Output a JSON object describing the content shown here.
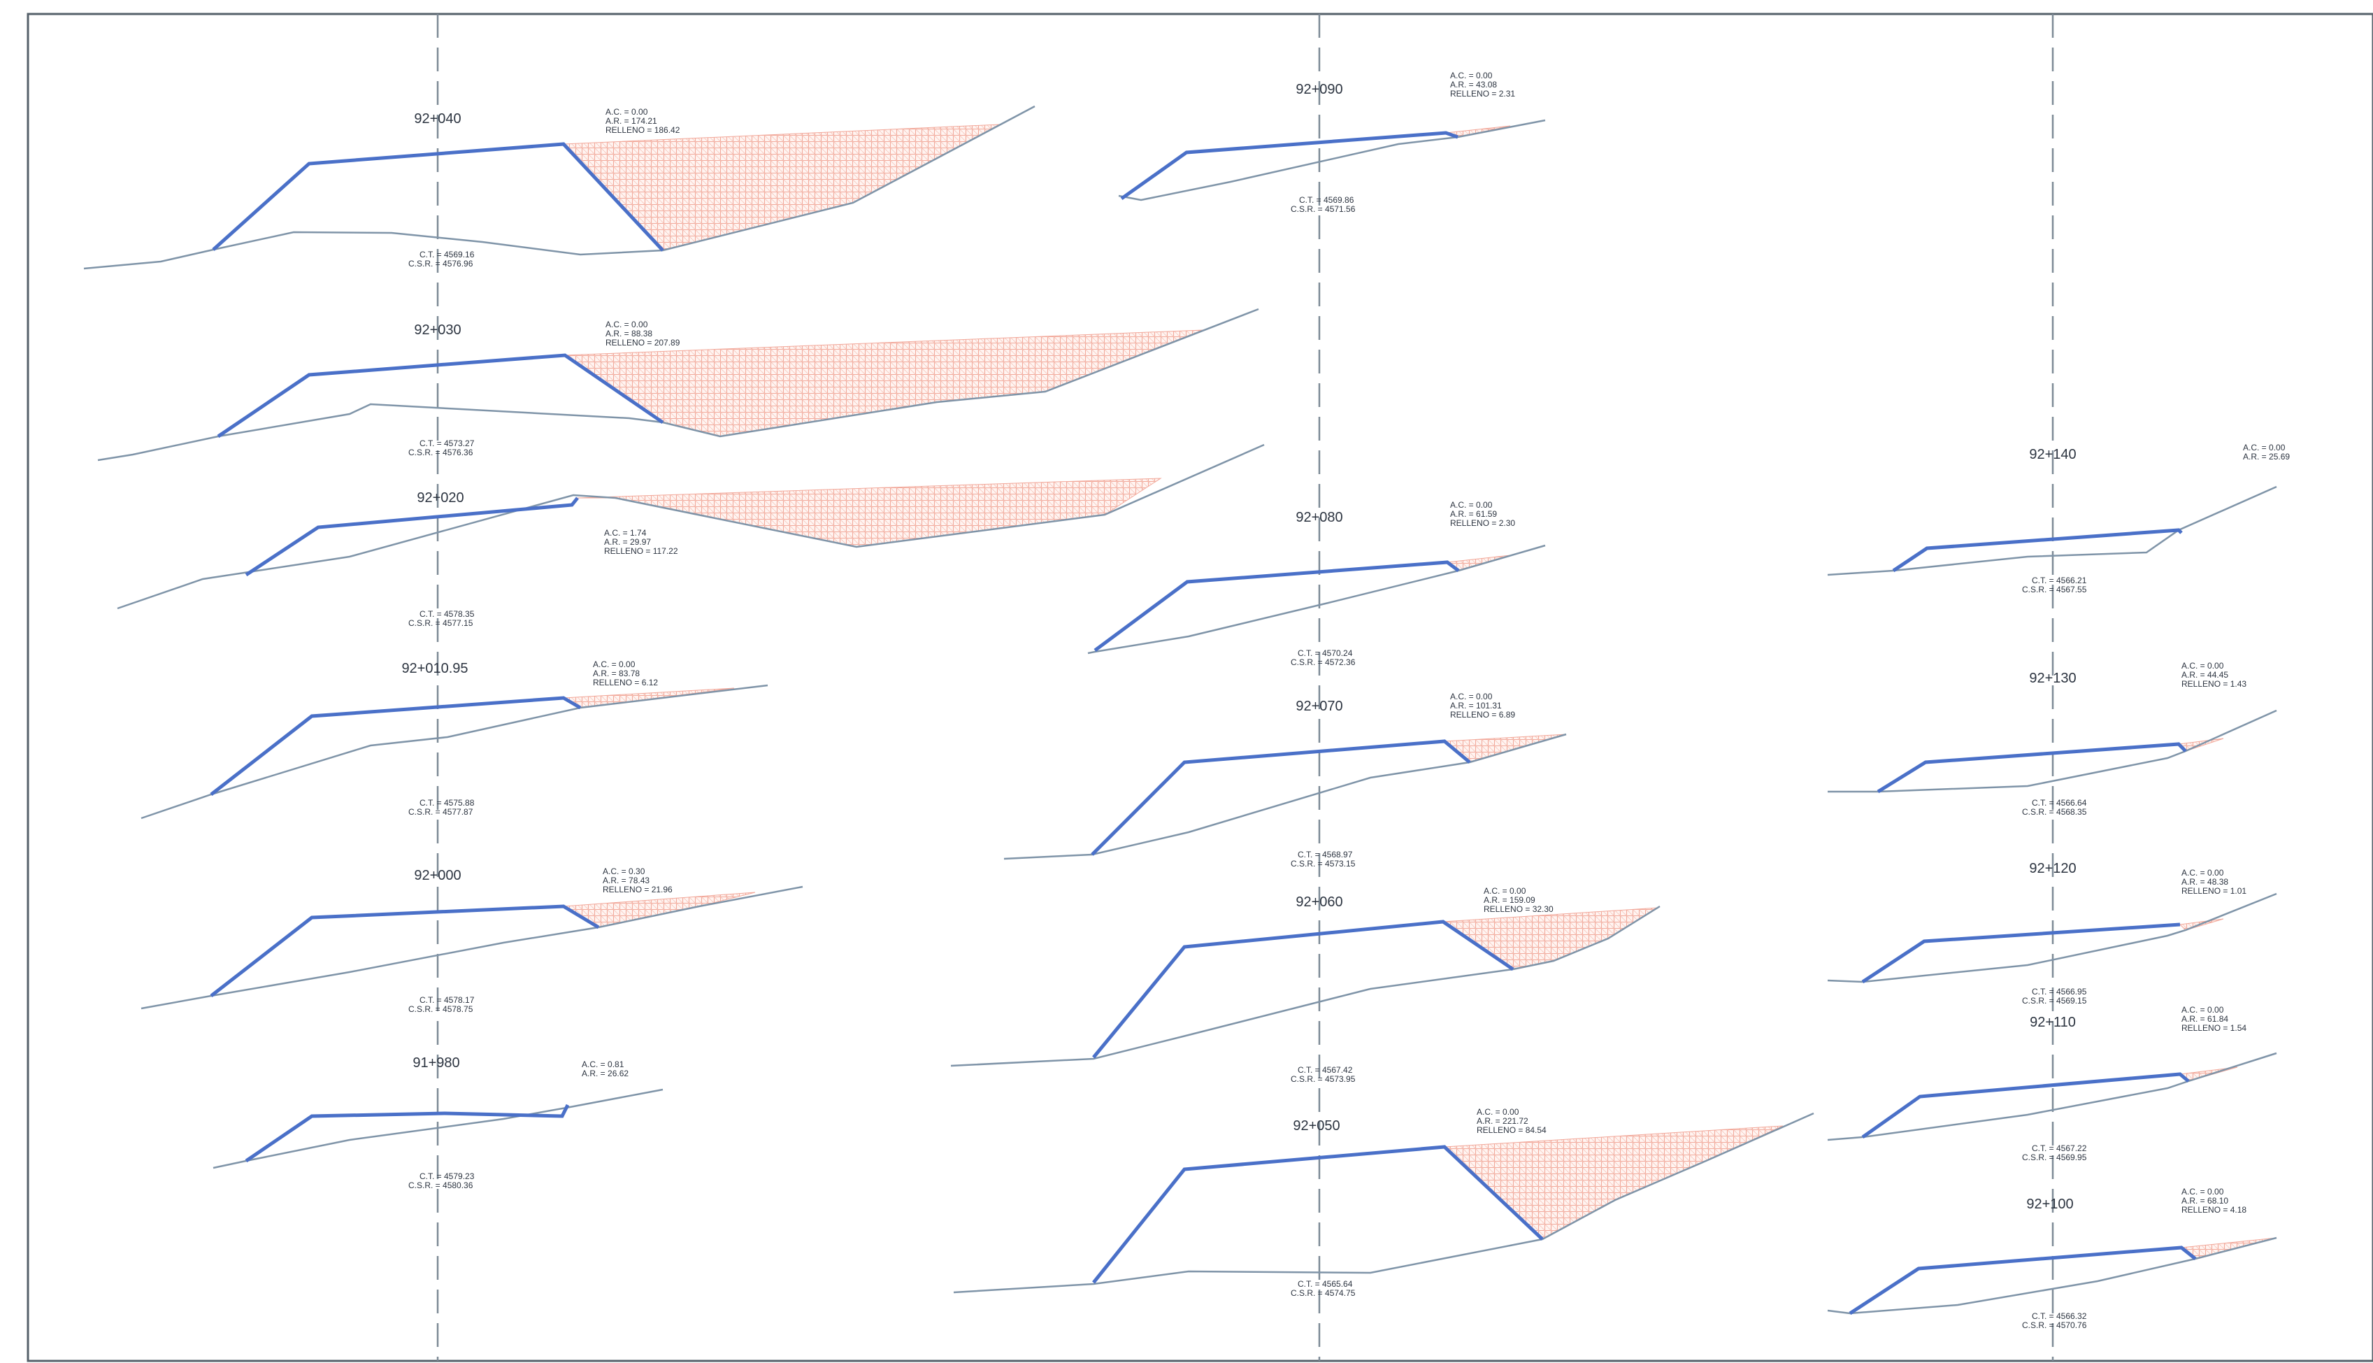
{
  "colors": {
    "design": "#4a70c8",
    "ground": "#7f94a8",
    "fill_hatch": "#f2a89a",
    "axis": "#7d8a96",
    "text": "#2c3440",
    "frame": "#55606a"
  },
  "sections": [
    {
      "station": "92+040",
      "areas": [
        "A.C. = 0.00",
        "A.R. = 174.21",
        "RELLENO = 186.42"
      ],
      "elevations": [
        "C.T. = 4569.16",
        "C.S.R. = 4576.96"
      ]
    },
    {
      "station": "92+030",
      "areas": [
        "A.C. = 0.00",
        "A.R. = 88.38",
        "RELLENO = 207.89"
      ],
      "elevations": [
        "C.T. = 4573.27",
        "C.S.R. = 4576.36"
      ]
    },
    {
      "station": "92+020",
      "areas": [
        "A.C. = 1.74",
        "A.R. = 29.97",
        "RELLENO = 117.22"
      ],
      "elevations": [
        "C.T. = 4578.35",
        "C.S.R. = 4577.15"
      ]
    },
    {
      "station": "92+010.95",
      "areas": [
        "A.C. = 0.00",
        "A.R. = 83.78",
        "RELLENO = 6.12"
      ],
      "elevations": [
        "C.T. = 4575.88",
        "C.S.R. = 4577.87"
      ]
    },
    {
      "station": "92+000",
      "areas": [
        "A.C. = 0.30",
        "A.R. = 78.43",
        "RELLENO = 21.96"
      ],
      "elevations": [
        "C.T. = 4578.17",
        "C.S.R. = 4578.75"
      ]
    },
    {
      "station": "91+980",
      "areas": [
        "A.C. = 0.81",
        "A.R. = 26.62"
      ],
      "elevations": [
        "C.T. = 4579.23",
        "C.S.R. = 4580.36"
      ]
    },
    {
      "station": "92+090",
      "areas": [
        "A.C. = 0.00",
        "A.R. = 43.08",
        "RELLENO = 2.31"
      ],
      "elevations": [
        "C.T. = 4569.86",
        "C.S.R. = 4571.56"
      ]
    },
    {
      "station": "92+080",
      "areas": [
        "A.C. = 0.00",
        "A.R. = 61.59",
        "RELLENO = 2.30"
      ],
      "elevations": [
        "C.T. = 4570.24",
        "C.S.R. = 4572.36"
      ]
    },
    {
      "station": "92+070",
      "areas": [
        "A.C. = 0.00",
        "A.R. = 101.31",
        "RELLENO = 6.89"
      ],
      "elevations": [
        "C.T. = 4568.97",
        "C.S.R. = 4573.15"
      ]
    },
    {
      "station": "92+060",
      "areas": [
        "A.C. = 0.00",
        "A.R. = 159.09",
        "RELLENO = 32.30"
      ],
      "elevations": [
        "C.T. = 4567.42",
        "C.S.R. = 4573.95"
      ]
    },
    {
      "station": "92+050",
      "areas": [
        "A.C. = 0.00",
        "A.R. = 221.72",
        "RELLENO = 84.54"
      ],
      "elevations": [
        "C.T. = 4565.64",
        "C.S.R. = 4574.75"
      ]
    },
    {
      "station": "92+140",
      "areas": [
        "A.C. = 0.00",
        "A.R. = 25.69"
      ],
      "elevations": [
        "C.T. = 4566.21",
        "C.S.R. = 4567.55"
      ]
    },
    {
      "station": "92+130",
      "areas": [
        "A.C. = 0.00",
        "A.R. = 44.45",
        "RELLENO = 1.43"
      ],
      "elevations": [
        "C.T. = 4566.64",
        "C.S.R. = 4568.35"
      ]
    },
    {
      "station": "92+120",
      "areas": [
        "A.C. = 0.00",
        "A.R. = 48.38",
        "RELLENO = 1.01"
      ],
      "elevations": [
        "C.T. = 4566.95",
        "C.S.R. = 4569.15"
      ]
    },
    {
      "station": "92+110",
      "areas": [
        "A.C. = 0.00",
        "A.R. = 61.84",
        "RELLENO = 1.54"
      ],
      "elevations": [
        "C.T. = 4567.22",
        "C.S.R. = 4569.95"
      ]
    },
    {
      "station": "92+100",
      "areas": [
        "A.C. = 0.00",
        "A.R. = 68.10",
        "RELLENO = 4.18"
      ],
      "elevations": [
        "C.T. = 4566.32",
        "C.S.R. = 4570.76"
      ]
    }
  ]
}
